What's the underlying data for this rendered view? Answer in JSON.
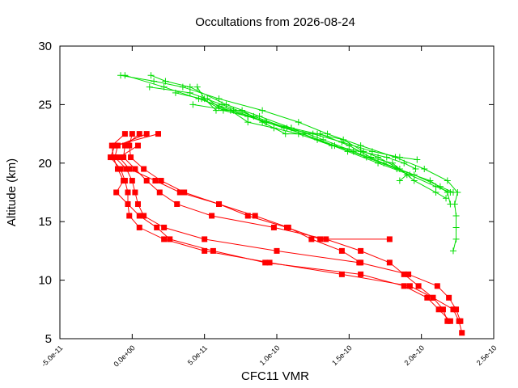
{
  "chart_data": {
    "type": "line",
    "title": "Occultations from 2026-08-24",
    "xlabel": "CFC11 VMR",
    "ylabel": "Altitude (km)",
    "xlim": [
      -5e-11,
      2.5e-10
    ],
    "ylim": [
      5,
      30
    ],
    "x_ticks": [
      "-5.0e-11",
      "0.0e+00",
      "5.0e-11",
      "1.0e-10",
      "1.5e-10",
      "2.0e-10",
      "2.5e-10"
    ],
    "y_ticks": [
      "5",
      "10",
      "15",
      "20",
      "25",
      "30"
    ],
    "grid": false,
    "legend": "none",
    "series": [
      {
        "color": "#ff0000",
        "marker": "square",
        "points": [
          [
            1.8e-11,
            22.5
          ],
          [
            -1.2e-11,
            21.5
          ],
          [
            -1.5e-11,
            20.5
          ],
          [
            -8e-12,
            19.5
          ],
          [
            -5e-12,
            18.5
          ],
          [
            -3e-12,
            17.5
          ],
          [
            -3e-12,
            16.5
          ],
          [
            -2e-12,
            15.5
          ],
          [
            5e-12,
            14.5
          ],
          [
            2.2e-11,
            13.5
          ],
          [
            5e-11,
            12.5
          ],
          [
            9.5e-11,
            11.5
          ],
          [
            1.45e-10,
            10.5
          ],
          [
            1.92e-10,
            9.5
          ],
          [
            2.08e-10,
            8.5
          ],
          [
            2.22e-10,
            7.5
          ],
          [
            2.26e-10,
            6.5
          ],
          [
            2.28e-10,
            5.5
          ]
        ]
      },
      {
        "color": "#ff0000",
        "marker": "square",
        "points": [
          [
            1e-11,
            22.5
          ],
          [
            -1e-11,
            21.5
          ],
          [
            -1.2e-11,
            20.5
          ],
          [
            -4e-12,
            19.5
          ],
          [
            0,
            18.5
          ],
          [
            2e-12,
            17.5
          ],
          [
            4e-12,
            16.5
          ],
          [
            8e-12,
            15.5
          ],
          [
            2.2e-11,
            14.5
          ],
          [
            5e-11,
            13.5
          ],
          [
            1e-10,
            12.5
          ],
          [
            1.57e-10,
            11.5
          ],
          [
            1.91e-10,
            10.5
          ],
          [
            2.11e-10,
            9.5
          ],
          [
            2.19e-10,
            8.5
          ],
          [
            2.24e-10,
            7.5
          ],
          [
            2.27e-10,
            6.5
          ]
        ]
      },
      {
        "color": "#ff0000",
        "marker": "square",
        "points": [
          [
            5e-12,
            22.5
          ],
          [
            -5e-12,
            21.5
          ],
          [
            -6e-12,
            20.5
          ],
          [
            2e-12,
            19.5
          ],
          [
            1e-11,
            18.5
          ],
          [
            1.9e-11,
            17.5
          ],
          [
            3.1e-11,
            16.5
          ],
          [
            5.5e-11,
            15.5
          ],
          [
            9.8e-11,
            14.5
          ],
          [
            1.34e-10,
            13.5
          ],
          [
            1.58e-10,
            12.5
          ],
          [
            1.78e-10,
            11.5
          ],
          [
            1.88e-10,
            10.5
          ],
          [
            1.98e-10,
            9.5
          ],
          [
            2.08e-10,
            8.5
          ],
          [
            2.15e-10,
            7.5
          ],
          [
            2.18e-10,
            6.5
          ]
        ]
      },
      {
        "color": "#ff0000",
        "marker": "square",
        "points": [
          [
            0,
            22.5
          ],
          [
            -2e-12,
            21.5
          ],
          [
            -1e-12,
            20.5
          ],
          [
            8e-12,
            19.5
          ],
          [
            2e-11,
            18.5
          ],
          [
            3.6e-11,
            17.5
          ],
          [
            6e-11,
            16.5
          ],
          [
            8e-11,
            15.5
          ],
          [
            1.07e-10,
            14.5
          ],
          [
            1.3e-10,
            13.5
          ],
          [
            1.78e-10,
            13.5
          ]
        ]
      },
      {
        "color": "#ff0000",
        "marker": "square",
        "points": [
          [
            -5e-12,
            22.5
          ],
          [
            -1.4e-11,
            21.5
          ],
          [
            -1.3e-11,
            20.5
          ],
          [
            -1e-11,
            19.5
          ],
          [
            -6e-12,
            18.5
          ],
          [
            -1.1e-11,
            17.5
          ],
          [
            -3e-12,
            16.5
          ],
          [
            5e-12,
            15.5
          ],
          [
            1.7e-11,
            14.5
          ],
          [
            2.6e-11,
            13.5
          ],
          [
            5.6e-11,
            12.5
          ],
          [
            9.2e-11,
            11.5
          ],
          [
            1.58e-10,
            10.5
          ],
          [
            1.88e-10,
            9.5
          ],
          [
            2.04e-10,
            8.5
          ],
          [
            2.12e-10,
            7.5
          ],
          [
            2.2e-10,
            6.5
          ]
        ]
      },
      {
        "color": "#ff0000",
        "marker": "square",
        "points": [
          [
            4e-12,
            21.5
          ],
          [
            -9e-12,
            20.5
          ],
          [
            -2e-12,
            19.5
          ],
          [
            1.6e-11,
            18.5
          ],
          [
            3.3e-11,
            17.5
          ],
          [
            6e-11,
            16.5
          ],
          [
            8.5e-11,
            15.5
          ],
          [
            1.08e-10,
            14.5
          ],
          [
            1.24e-10,
            13.5
          ],
          [
            1.45e-10,
            12.5
          ],
          [
            1.58e-10,
            11.5
          ]
        ]
      },
      {
        "color": "#00dd00",
        "marker": "plus",
        "points": [
          [
            -8e-12,
            27.5
          ],
          [
            1.5e-11,
            27
          ],
          [
            3.5e-11,
            26.5
          ],
          [
            6e-11,
            25.5
          ],
          [
            9e-11,
            24.5
          ],
          [
            1.15e-10,
            23.5
          ],
          [
            1.35e-10,
            22.5
          ],
          [
            1.58e-10,
            21.5
          ],
          [
            1.82e-10,
            20.5
          ],
          [
            2.02e-10,
            19.5
          ],
          [
            2.18e-10,
            18.5
          ],
          [
            2.25e-10,
            17.5
          ],
          [
            2.23e-10,
            16.5
          ],
          [
            2.24e-10,
            15.5
          ],
          [
            2.24e-10,
            14.5
          ],
          [
            2.24e-10,
            13.5
          ],
          [
            2.22e-10,
            12.5
          ]
        ]
      },
      {
        "color": "#00dd00",
        "marker": "plus",
        "points": [
          [
            -5e-12,
            27.5
          ],
          [
            2.2e-11,
            26.5
          ],
          [
            4.6e-11,
            25.5
          ],
          [
            7e-11,
            24.5
          ],
          [
            9.3e-11,
            23.5
          ],
          [
            1.18e-10,
            22.5
          ],
          [
            1.4e-10,
            21.5
          ],
          [
            1.62e-10,
            20.5
          ],
          [
            1.83e-10,
            19.5
          ],
          [
            2.06e-10,
            18.5
          ],
          [
            2.18e-10,
            17.5
          ],
          [
            2.2e-10,
            16.5
          ]
        ]
      },
      {
        "color": "#00dd00",
        "marker": "plus",
        "points": [
          [
            1.3e-11,
            27.5
          ],
          [
            2.3e-11,
            27
          ],
          [
            4e-11,
            26.5
          ],
          [
            6.5e-11,
            25
          ],
          [
            8.8e-11,
            24
          ],
          [
            1.1e-10,
            23
          ],
          [
            1.32e-10,
            22
          ],
          [
            1.53e-10,
            21
          ],
          [
            1.74e-10,
            20
          ],
          [
            1.95e-10,
            19
          ],
          [
            2.13e-10,
            18
          ],
          [
            2.22e-10,
            17.5
          ]
        ]
      },
      {
        "color": "#00dd00",
        "marker": "plus",
        "points": [
          [
            1.2e-11,
            26.5
          ],
          [
            4e-11,
            26
          ],
          [
            6.2e-11,
            25
          ],
          [
            8.4e-11,
            24
          ],
          [
            1.07e-10,
            23
          ],
          [
            1.28e-10,
            22
          ],
          [
            1.49e-10,
            21
          ],
          [
            1.7e-10,
            20
          ],
          [
            1.92e-10,
            19
          ],
          [
            2.1e-10,
            18
          ],
          [
            2.2e-10,
            17.5
          ]
        ]
      },
      {
        "color": "#00dd00",
        "marker": "plus",
        "points": [
          [
            3e-11,
            26
          ],
          [
            4.8e-11,
            25.5
          ],
          [
            6.3e-11,
            24.5
          ],
          [
            8e-11,
            24
          ],
          [
            9.2e-11,
            23.5
          ],
          [
            1.1e-10,
            23
          ],
          [
            1.28e-10,
            22.5
          ],
          [
            1.46e-10,
            22
          ],
          [
            1.6e-10,
            21
          ],
          [
            1.7e-10,
            20.5
          ],
          [
            1.85e-10,
            19.5
          ],
          [
            1.95e-10,
            18.5
          ],
          [
            2.1e-10,
            17.5
          ],
          [
            2.17e-10,
            17
          ]
        ]
      },
      {
        "color": "#00dd00",
        "marker": "plus",
        "points": [
          [
            4.5e-11,
            26.5
          ],
          [
            5e-11,
            25.5
          ],
          [
            5.8e-11,
            24.5
          ],
          [
            7.6e-11,
            24.5
          ],
          [
            9e-11,
            23.5
          ],
          [
            1.06e-10,
            22.5
          ],
          [
            1.3e-10,
            22.5
          ],
          [
            1.5e-10,
            21.5
          ],
          [
            1.65e-10,
            20.5
          ],
          [
            1.8e-10,
            20
          ],
          [
            1.9e-10,
            19
          ],
          [
            1.85e-10,
            18.5
          ]
        ]
      },
      {
        "color": "#00dd00",
        "marker": "plus",
        "points": [
          [
            4.2e-11,
            25
          ],
          [
            6.8e-11,
            24.5
          ],
          [
            8e-11,
            23.5
          ],
          [
            9.8e-11,
            23
          ],
          [
            1.15e-10,
            22.5
          ],
          [
            1.38e-10,
            21.5
          ],
          [
            1.58e-10,
            21
          ],
          [
            1.76e-10,
            20.5
          ],
          [
            1.88e-10,
            20
          ],
          [
            1.96e-10,
            19.5
          ]
        ]
      },
      {
        "color": "#00dd00",
        "marker": "plus",
        "points": [
          [
            5.2e-11,
            25.5
          ],
          [
            6e-11,
            24.8
          ],
          [
            8e-11,
            24
          ],
          [
            1.05e-10,
            23
          ],
          [
            1.25e-10,
            22.5
          ],
          [
            1.45e-10,
            21.8
          ],
          [
            1.66e-10,
            21
          ],
          [
            1.85e-10,
            20.5
          ],
          [
            1.97e-10,
            20.3
          ]
        ]
      }
    ]
  }
}
